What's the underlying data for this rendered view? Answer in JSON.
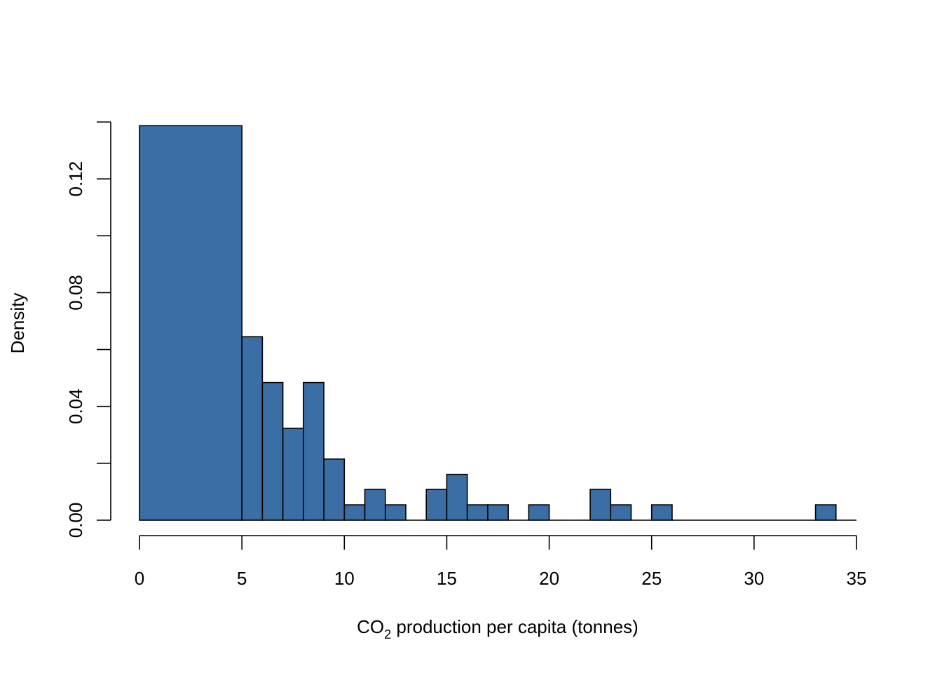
{
  "chart_data": {
    "type": "bar",
    "subtype": "histogram",
    "title": "",
    "xlabel": {
      "prefix": "CO",
      "subscript": "2",
      "suffix": " production per capita (tonnes)"
    },
    "ylabel": "Density",
    "bar_color": "#3A6EA5",
    "edge_color": "#000000",
    "xlim": [
      0,
      35
    ],
    "ylim": [
      0,
      0.14
    ],
    "x_ticks": [
      0,
      5,
      10,
      15,
      20,
      25,
      30,
      35
    ],
    "x_tick_labels": [
      "0",
      "5",
      "10",
      "15",
      "20",
      "25",
      "30",
      "35"
    ],
    "y_ticks": [
      0,
      0.02,
      0.04,
      0.06,
      0.08,
      0.1,
      0.12,
      0.14
    ],
    "y_tick_labels": [
      "0.00",
      "",
      "0.04",
      "",
      "0.08",
      "",
      "0.12",
      ""
    ],
    "bins": [
      {
        "x0": 0,
        "x1": 5,
        "density": 0.1387
      },
      {
        "x0": 5,
        "x1": 6,
        "density": 0.0645
      },
      {
        "x0": 6,
        "x1": 7,
        "density": 0.0484
      },
      {
        "x0": 7,
        "x1": 8,
        "density": 0.0323
      },
      {
        "x0": 8,
        "x1": 9,
        "density": 0.0484
      },
      {
        "x0": 9,
        "x1": 10,
        "density": 0.0215
      },
      {
        "x0": 10,
        "x1": 11,
        "density": 0.0054
      },
      {
        "x0": 11,
        "x1": 12,
        "density": 0.0108
      },
      {
        "x0": 12,
        "x1": 13,
        "density": 0.0054
      },
      {
        "x0": 13,
        "x1": 14,
        "density": 0
      },
      {
        "x0": 14,
        "x1": 15,
        "density": 0.0108
      },
      {
        "x0": 15,
        "x1": 16,
        "density": 0.0161
      },
      {
        "x0": 16,
        "x1": 17,
        "density": 0.0054
      },
      {
        "x0": 17,
        "x1": 18,
        "density": 0.0054
      },
      {
        "x0": 18,
        "x1": 19,
        "density": 0
      },
      {
        "x0": 19,
        "x1": 20,
        "density": 0.0054
      },
      {
        "x0": 20,
        "x1": 21,
        "density": 0
      },
      {
        "x0": 21,
        "x1": 22,
        "density": 0
      },
      {
        "x0": 22,
        "x1": 23,
        "density": 0.0108
      },
      {
        "x0": 23,
        "x1": 24,
        "density": 0.0054
      },
      {
        "x0": 24,
        "x1": 25,
        "density": 0
      },
      {
        "x0": 25,
        "x1": 26,
        "density": 0.0054
      },
      {
        "x0": 26,
        "x1": 27,
        "density": 0
      },
      {
        "x0": 27,
        "x1": 28,
        "density": 0
      },
      {
        "x0": 28,
        "x1": 29,
        "density": 0
      },
      {
        "x0": 29,
        "x1": 30,
        "density": 0
      },
      {
        "x0": 30,
        "x1": 31,
        "density": 0
      },
      {
        "x0": 31,
        "x1": 32,
        "density": 0
      },
      {
        "x0": 32,
        "x1": 33,
        "density": 0
      },
      {
        "x0": 33,
        "x1": 34,
        "density": 0.0054
      },
      {
        "x0": 34,
        "x1": 35,
        "density": 0
      }
    ],
    "grid": false,
    "legend": "none"
  }
}
